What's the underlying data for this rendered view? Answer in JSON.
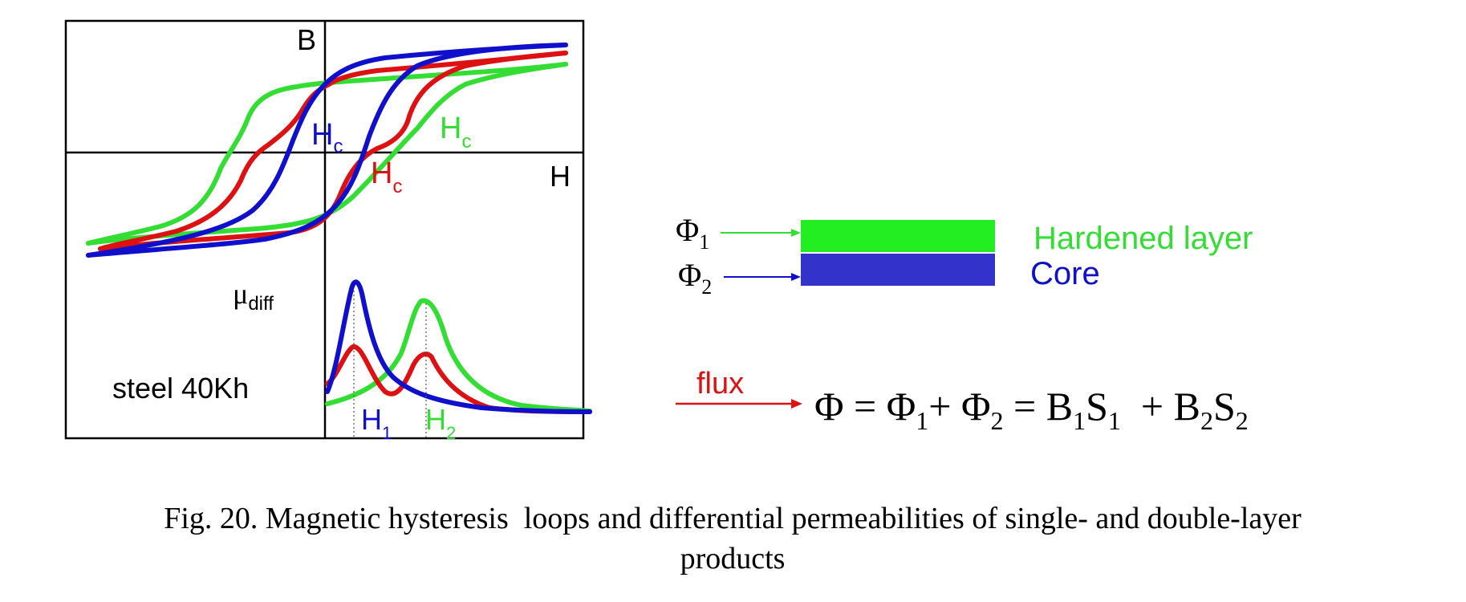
{
  "colors": {
    "green": "#33dd33",
    "red": "#dd1111",
    "blue": "#1010cc",
    "layer_green": "#22ee22",
    "layer_blue": "#3333cc",
    "arrow_red": "#dd1111",
    "axis": "#000000"
  },
  "plot": {
    "axis_b": "B",
    "axis_h": "H",
    "hc": "H",
    "hc_sub": "c",
    "mu": "μ",
    "mu_sub": "diff",
    "material": "steel 40Kh",
    "h1": "H",
    "h1_sub": "1",
    "h2": "H",
    "h2_sub": "2"
  },
  "layers": {
    "phi": "Φ",
    "phi1_sub": "1",
    "phi2_sub": "2",
    "hardened_label": "Hardened layer",
    "core_label": "Core"
  },
  "formula": {
    "flux_label": "flux",
    "lhs": "Φ = Φ",
    "sub1": "1",
    "plus_phi2": "+ Φ",
    "sub2": "2",
    "eq_b1": " = B",
    "b1_sub": "1",
    "s1": "S",
    "s1_sub": "1",
    "plus_b2": "  + B",
    "b2_sub": "2",
    "s2": "S",
    "s2_sub": "2"
  },
  "caption": {
    "line1": "Fig. 20. Magnetic hysteresis  loops and differential permeabilities of single- and double-layer",
    "line2": "products"
  }
}
